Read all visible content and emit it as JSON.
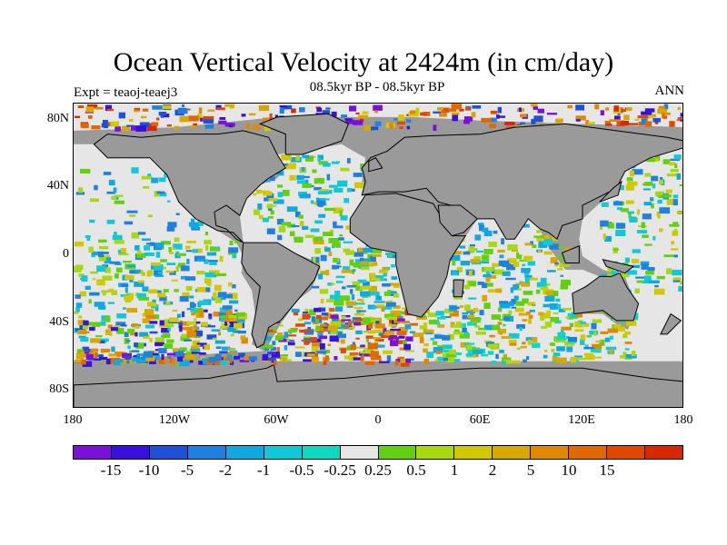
{
  "title": "Ocean Vertical Velocity at 2424m (in cm/day)",
  "subtitle": "08.5kyr BP - 08.5kyr BP",
  "left_label": "Expt = teaoj-teaej3",
  "right_label": "ANN",
  "map": {
    "land_color": "#9a9a9a",
    "near_zero_ocean_color": "#e6e6e6",
    "lat_ticks": [
      "80N",
      "40N",
      "0",
      "40S",
      "80S"
    ],
    "lon_ticks": [
      "180",
      "120W",
      "60W",
      "0",
      "60E",
      "120E",
      "180"
    ],
    "lat_tick_values": [
      80,
      40,
      0,
      -40,
      -80
    ],
    "lon_tick_values": [
      -180,
      -120,
      -60,
      0,
      60,
      120,
      180
    ]
  },
  "colorbar": {
    "colors": [
      "#7b10d8",
      "#3a10e0",
      "#1e50d8",
      "#1e80e0",
      "#10a8e0",
      "#10c8d8",
      "#10d8c0",
      "#e6e6e6",
      "#60d010",
      "#a8d810",
      "#d0c800",
      "#d8a800",
      "#e08800",
      "#e06800",
      "#e04800",
      "#d82800"
    ],
    "labels": [
      "-15",
      "-10",
      "-5",
      "-2",
      "-1",
      "-0.5",
      "-0.25",
      "0.25",
      "0.5",
      "1",
      "2",
      "5",
      "10",
      "15"
    ]
  }
}
